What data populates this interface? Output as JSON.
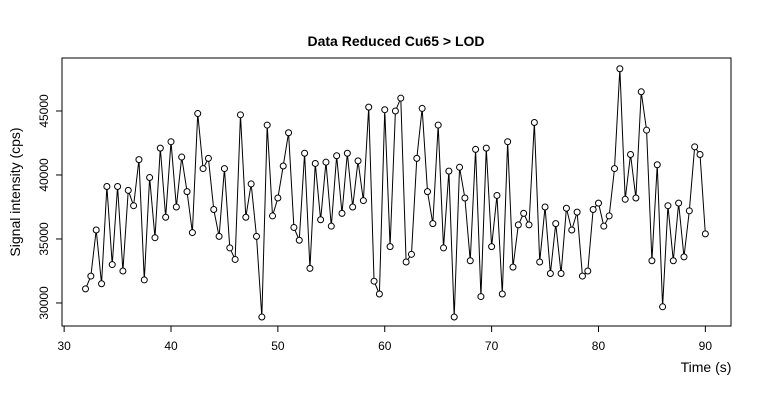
{
  "chart_data": {
    "type": "line",
    "title": "Data Reduced Cu65 > LOD",
    "x_label": "Time (s)",
    "y_label": "Signal intensity (cps)",
    "x": [
      32,
      32.5,
      33,
      33.5,
      34,
      34.5,
      35,
      35.5,
      36,
      36.5,
      37,
      37.5,
      38,
      38.5,
      39,
      39.5,
      40,
      40.5,
      41,
      41.5,
      42,
      42.5,
      43,
      43.5,
      44,
      44.5,
      45,
      45.5,
      46,
      46.5,
      47,
      47.5,
      48,
      48.5,
      49,
      49.5,
      50,
      50.5,
      51,
      51.5,
      52,
      52.5,
      53,
      53.5,
      54,
      54.5,
      55,
      55.5,
      56,
      56.5,
      57,
      57.5,
      58,
      58.5,
      59,
      59.5,
      60,
      60.5,
      61,
      61.5,
      62,
      62.5,
      63,
      63.5,
      64,
      64.5,
      65,
      65.5,
      66,
      66.5,
      67,
      67.5,
      68,
      68.5,
      69,
      69.5,
      70,
      70.5,
      71,
      71.5,
      72,
      72.5,
      73,
      73.5,
      74,
      74.5,
      75,
      75.5,
      76,
      76.5,
      77,
      77.5,
      78,
      78.5,
      79,
      79.5,
      80,
      80.5,
      81,
      81.5,
      82,
      82.5,
      83,
      83.5,
      84,
      84.5,
      85,
      85.5,
      86,
      86.5,
      87,
      87.5,
      88,
      88.5,
      89,
      89.5,
      90
    ],
    "series": [
      {
        "name": "Cu65",
        "color": "#000000",
        "values": [
          31100,
          32100,
          35700,
          31500,
          39100,
          33000,
          39100,
          32500,
          38800,
          37600,
          41200,
          31800,
          39800,
          35100,
          42100,
          36700,
          42600,
          37500,
          41400,
          38700,
          35500,
          44800,
          40500,
          41300,
          37300,
          35200,
          40500,
          34300,
          33400,
          44700,
          36700,
          39300,
          35200,
          28900,
          43900,
          36800,
          38200,
          40700,
          43300,
          35900,
          34900,
          41700,
          32700,
          40900,
          36500,
          41000,
          36000,
          41500,
          37000,
          41700,
          37500,
          41100,
          38000,
          45300,
          31700,
          30700,
          45100,
          34400,
          45000,
          46000,
          33200,
          33800,
          41300,
          45200,
          38700,
          36200,
          43900,
          34300,
          40300,
          28900,
          40600,
          38200,
          33300,
          42000,
          30500,
          42100,
          34400,
          38400,
          30700,
          42600,
          32800,
          36100,
          37000,
          36100,
          44100,
          33200,
          37500,
          32300,
          36200,
          32300,
          37400,
          35700,
          37100,
          32100,
          32500,
          37300,
          37800,
          36000,
          36800,
          40500,
          48300,
          38100,
          41600,
          38200,
          46500,
          43500,
          33300,
          40800,
          29700,
          37600,
          33300,
          37800,
          33600,
          37200,
          42200,
          41600,
          35400
        ]
      }
    ],
    "xlim": [
      29.8,
      92.4
    ],
    "ylim": [
      28200,
      49140
    ],
    "xticks": [
      30,
      40,
      50,
      60,
      70,
      80,
      90
    ],
    "yticks": [
      30000,
      35000,
      40000,
      45000
    ]
  }
}
